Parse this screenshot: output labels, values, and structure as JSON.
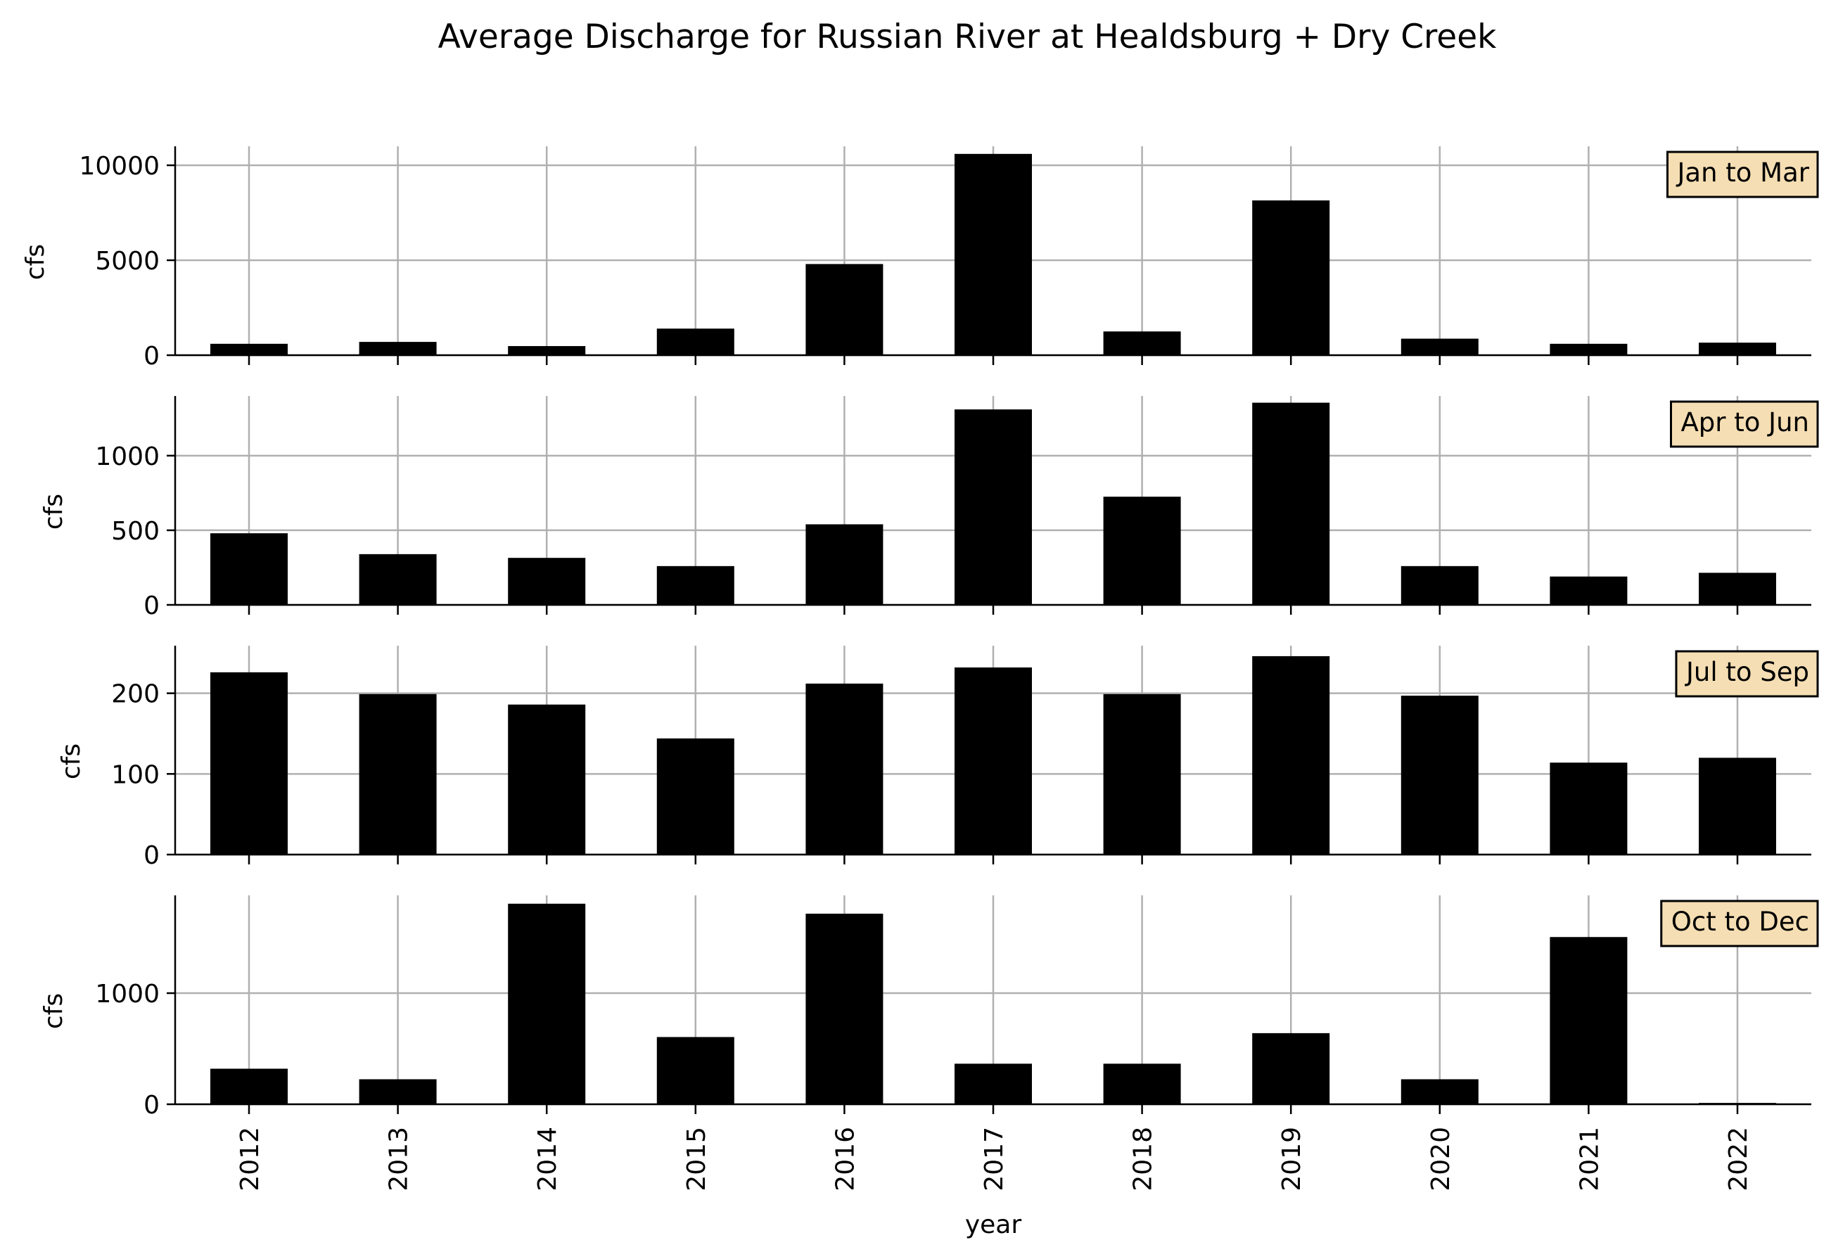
{
  "chart_data": {
    "type": "bar",
    "title": "Average Discharge for Russian River at Healdsburg + Dry Creek",
    "xlabel": "year",
    "categories": [
      "2012",
      "2013",
      "2014",
      "2015",
      "2016",
      "2017",
      "2018",
      "2019",
      "2020",
      "2021",
      "2022"
    ],
    "grid": true,
    "bar_color": "#000000",
    "label_box_color": "#f5deb3",
    "panels": [
      {
        "label": "Jan to Mar",
        "ylabel": "cfs",
        "ylim": [
          0,
          11000
        ],
        "yticks": [
          0,
          5000,
          10000
        ],
        "values": [
          600,
          700,
          480,
          1400,
          4800,
          10600,
          1250,
          8150,
          870,
          600,
          660
        ]
      },
      {
        "label": "Apr to Jun",
        "ylabel": "cfs",
        "ylim": [
          0,
          1400
        ],
        "yticks": [
          0,
          500,
          1000
        ],
        "values": [
          480,
          340,
          315,
          260,
          540,
          1310,
          725,
          1355,
          260,
          190,
          215
        ]
      },
      {
        "label": "Jul to Sep",
        "ylabel": "cfs",
        "ylim": [
          0,
          259
        ],
        "yticks": [
          0,
          100,
          200
        ],
        "values": [
          226,
          199,
          186,
          144,
          212,
          232,
          199,
          246,
          197,
          114,
          120
        ]
      },
      {
        "label": "Oct to Dec",
        "ylabel": "cfs",
        "ylim": [
          0,
          1880
        ],
        "yticks": [
          0,
          1000
        ],
        "values": [
          320,
          225,
          1805,
          605,
          1715,
          365,
          365,
          640,
          225,
          1505,
          12
        ]
      }
    ]
  }
}
